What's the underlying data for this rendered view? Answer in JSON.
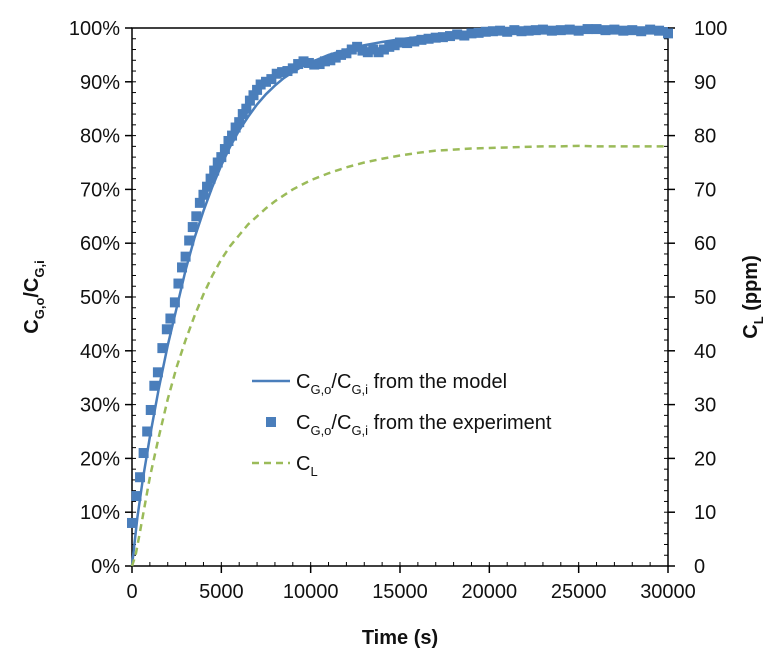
{
  "chart_data": {
    "type": "line",
    "x": {
      "label": "Time (s)",
      "range": [
        0,
        30000
      ],
      "ticks": [
        0,
        5000,
        10000,
        15000,
        20000,
        25000,
        30000
      ],
      "tick_labels": [
        "0",
        "5000",
        "10000",
        "15000",
        "20000",
        "25000",
        "30000"
      ]
    },
    "y_left": {
      "label_main": "C",
      "label_sub": "G,o",
      "label_sep": "/",
      "label_main2": "C",
      "label_sub2": "G,i",
      "range": [
        0,
        100
      ],
      "ticks": [
        0,
        10,
        20,
        30,
        40,
        50,
        60,
        70,
        80,
        90,
        100
      ],
      "tick_labels": [
        "0%",
        "10%",
        "20%",
        "30%",
        "40%",
        "50%",
        "60%",
        "70%",
        "80%",
        "90%",
        "100%"
      ]
    },
    "y_right": {
      "label_main": "C",
      "label_sub": "L",
      "label_rest": " (ppm)",
      "range": [
        0,
        100
      ],
      "ticks": [
        0,
        10,
        20,
        30,
        40,
        50,
        60,
        70,
        80,
        90,
        100
      ],
      "tick_labels": [
        "0",
        "10",
        "20",
        "30",
        "40",
        "50",
        "60",
        "70",
        "80",
        "90",
        "100"
      ]
    },
    "legend_position": "center-right",
    "series": [
      {
        "name_main": "C",
        "name_sub": "G,o",
        "name_sep": "/",
        "name_main2": "C",
        "name_sub2": "G,i",
        "name_rest": " from the model",
        "style": "solid-line",
        "color": "#4a7ebb",
        "axis": "left",
        "points": [
          [
            0,
            0
          ],
          [
            300,
            9
          ],
          [
            600,
            16
          ],
          [
            1000,
            24
          ],
          [
            1500,
            33
          ],
          [
            2000,
            41
          ],
          [
            2500,
            48
          ],
          [
            3000,
            55
          ],
          [
            3500,
            61
          ],
          [
            4000,
            66
          ],
          [
            4500,
            70.5
          ],
          [
            5000,
            74.5
          ],
          [
            5500,
            78
          ],
          [
            6000,
            81
          ],
          [
            6500,
            83.5
          ],
          [
            7000,
            85.8
          ],
          [
            7500,
            87.7
          ],
          [
            8000,
            89.3
          ],
          [
            8500,
            90.7
          ],
          [
            9000,
            91.8
          ],
          [
            9500,
            92.8
          ],
          [
            10000,
            93.6
          ],
          [
            11000,
            95
          ],
          [
            12000,
            96
          ],
          [
            13000,
            96.8
          ],
          [
            14000,
            97.4
          ],
          [
            15000,
            97.9
          ],
          [
            16000,
            98.3
          ],
          [
            17000,
            98.7
          ],
          [
            18000,
            99
          ],
          [
            19000,
            99.2
          ],
          [
            20000,
            99.4
          ],
          [
            22000,
            99.6
          ],
          [
            24000,
            99.75
          ],
          [
            26000,
            99.85
          ],
          [
            28000,
            99.9
          ],
          [
            30000,
            99.95
          ]
        ]
      },
      {
        "name_main": "C",
        "name_sub": "G,o",
        "name_sep": "/",
        "name_main2": "C",
        "name_sub2": "G,i",
        "name_rest": " from the experiment",
        "style": "square-markers",
        "color": "#4a7ebb",
        "axis": "left",
        "points": [
          [
            0,
            8
          ],
          [
            250,
            13
          ],
          [
            450,
            16.5
          ],
          [
            650,
            21
          ],
          [
            850,
            25
          ],
          [
            1050,
            29
          ],
          [
            1250,
            33.5
          ],
          [
            1450,
            36
          ],
          [
            1700,
            40.5
          ],
          [
            1950,
            44
          ],
          [
            2150,
            46
          ],
          [
            2400,
            49
          ],
          [
            2600,
            52.5
          ],
          [
            2800,
            55.5
          ],
          [
            3000,
            57.5
          ],
          [
            3200,
            60.5
          ],
          [
            3400,
            63
          ],
          [
            3600,
            65
          ],
          [
            3800,
            67.5
          ],
          [
            4000,
            69
          ],
          [
            4200,
            70.5
          ],
          [
            4400,
            72
          ],
          [
            4600,
            73.5
          ],
          [
            4800,
            75
          ],
          [
            5000,
            76
          ],
          [
            5200,
            77.5
          ],
          [
            5400,
            79
          ],
          [
            5600,
            80
          ],
          [
            5800,
            81.5
          ],
          [
            6000,
            82.5
          ],
          [
            6200,
            84
          ],
          [
            6400,
            85
          ],
          [
            6600,
            86.5
          ],
          [
            6800,
            87.5
          ],
          [
            7000,
            88.5
          ],
          [
            7200,
            89.5
          ],
          [
            7500,
            90
          ],
          [
            7800,
            90.5
          ],
          [
            8100,
            91.5
          ],
          [
            8400,
            91.8
          ],
          [
            8700,
            92
          ],
          [
            9000,
            92.5
          ],
          [
            9300,
            93.3
          ],
          [
            9600,
            93.8
          ],
          [
            9900,
            93.5
          ],
          [
            10200,
            93.2
          ],
          [
            10500,
            93.3
          ],
          [
            10800,
            93.8
          ],
          [
            11100,
            94
          ],
          [
            11400,
            94.5
          ],
          [
            11700,
            95
          ],
          [
            12000,
            95.3
          ],
          [
            12300,
            96
          ],
          [
            12600,
            96.5
          ],
          [
            12900,
            95.8
          ],
          [
            13200,
            95.5
          ],
          [
            13500,
            96
          ],
          [
            13800,
            95.5
          ],
          [
            14100,
            96
          ],
          [
            14400,
            96.5
          ],
          [
            14700,
            96.8
          ],
          [
            15000,
            97.3
          ],
          [
            15400,
            97.2
          ],
          [
            15800,
            97.5
          ],
          [
            16200,
            97.8
          ],
          [
            16600,
            98
          ],
          [
            17000,
            98.2
          ],
          [
            17400,
            98.3
          ],
          [
            17800,
            98.5
          ],
          [
            18200,
            98.8
          ],
          [
            18600,
            98.6
          ],
          [
            19000,
            99
          ],
          [
            19400,
            99.1
          ],
          [
            19800,
            99.3
          ],
          [
            20200,
            99.4
          ],
          [
            20600,
            99.5
          ],
          [
            21000,
            99.3
          ],
          [
            21400,
            99.6
          ],
          [
            21800,
            99.4
          ],
          [
            22200,
            99.5
          ],
          [
            22600,
            99.6
          ],
          [
            23000,
            99.7
          ],
          [
            23500,
            99.5
          ],
          [
            24000,
            99.6
          ],
          [
            24500,
            99.7
          ],
          [
            25000,
            99.5
          ],
          [
            25500,
            99.8
          ],
          [
            26000,
            99.8
          ],
          [
            26500,
            99.6
          ],
          [
            27000,
            99.7
          ],
          [
            27500,
            99.5
          ],
          [
            28000,
            99.6
          ],
          [
            28500,
            99.4
          ],
          [
            29000,
            99.7
          ],
          [
            29500,
            99.5
          ],
          [
            30000,
            99
          ]
        ]
      },
      {
        "name_main": "C",
        "name_sub": "L",
        "name_rest": "",
        "style": "dashed-line",
        "color": "#9bbb59",
        "axis": "right",
        "points": [
          [
            0,
            0
          ],
          [
            200,
            2
          ],
          [
            400,
            5.5
          ],
          [
            700,
            11
          ],
          [
            1000,
            16.5
          ],
          [
            1500,
            24
          ],
          [
            2000,
            31
          ],
          [
            2500,
            37
          ],
          [
            3000,
            42
          ],
          [
            3500,
            46.5
          ],
          [
            4000,
            50.5
          ],
          [
            4500,
            54
          ],
          [
            5000,
            57
          ],
          [
            5500,
            59.5
          ],
          [
            6000,
            61.5
          ],
          [
            6500,
            63.5
          ],
          [
            7000,
            65
          ],
          [
            7500,
            66.5
          ],
          [
            8000,
            67.8
          ],
          [
            9000,
            70
          ],
          [
            10000,
            71.7
          ],
          [
            11000,
            73
          ],
          [
            12000,
            74.1
          ],
          [
            13000,
            75
          ],
          [
            14000,
            75.7
          ],
          [
            15000,
            76.3
          ],
          [
            16000,
            76.8
          ],
          [
            17000,
            77.2
          ],
          [
            18000,
            77.4
          ],
          [
            19000,
            77.6
          ],
          [
            20000,
            77.7
          ],
          [
            21000,
            77.8
          ],
          [
            22000,
            77.9
          ],
          [
            23000,
            78
          ],
          [
            24000,
            78
          ],
          [
            25000,
            78.1
          ],
          [
            26000,
            78
          ],
          [
            27000,
            78
          ],
          [
            28000,
            78
          ],
          [
            29000,
            78
          ],
          [
            30000,
            78
          ]
        ]
      }
    ]
  }
}
